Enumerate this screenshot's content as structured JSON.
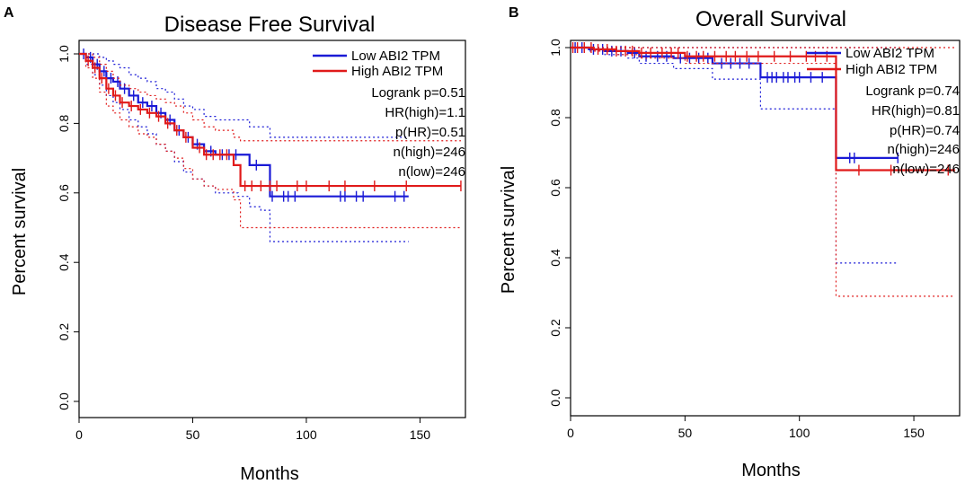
{
  "colors": {
    "low": "#1a1ad6",
    "high": "#e01a1a"
  },
  "chart_data": [
    {
      "type": "line",
      "panel_label": "A",
      "title": "Disease Free Survival",
      "xlabel": "Months",
      "ylabel": "Percent survival",
      "xlim": [
        0,
        170
      ],
      "ylim": [
        0,
        1
      ],
      "xticks": [
        "0",
        "50",
        "100",
        "150"
      ],
      "yticks": [
        "0.0",
        "0.2",
        "0.4",
        "0.6",
        "0.8",
        "1.0"
      ],
      "legend": [
        "Low ABI2 TPM",
        "High ABI2 TPM"
      ],
      "annotations": [
        "Logrank p=0.51",
        "HR(high)=1.1",
        "p(HR)=0.51",
        "n(high)=246",
        "n(low)=246"
      ],
      "series": [
        {
          "name": "Low ABI2 TPM",
          "color": "low",
          "x": [
            0,
            3,
            6,
            9,
            12,
            15,
            18,
            22,
            26,
            30,
            34,
            38,
            42,
            46,
            50,
            55,
            60,
            70,
            75,
            80,
            84,
            145
          ],
          "y": [
            1.0,
            0.99,
            0.97,
            0.95,
            0.93,
            0.92,
            0.9,
            0.88,
            0.86,
            0.85,
            0.83,
            0.81,
            0.78,
            0.76,
            0.74,
            0.72,
            0.71,
            0.71,
            0.68,
            0.68,
            0.59,
            0.59
          ],
          "lower": [
            1.0,
            0.97,
            0.94,
            0.91,
            0.88,
            0.86,
            0.84,
            0.81,
            0.79,
            0.77,
            0.74,
            0.72,
            0.69,
            0.66,
            0.64,
            0.62,
            0.6,
            0.59,
            0.56,
            0.55,
            0.46,
            0.46
          ],
          "upper": [
            1.0,
            1.0,
            1.0,
            0.99,
            0.98,
            0.97,
            0.96,
            0.94,
            0.93,
            0.92,
            0.9,
            0.89,
            0.87,
            0.85,
            0.84,
            0.82,
            0.81,
            0.81,
            0.79,
            0.79,
            0.76,
            0.76
          ],
          "censors": [
            2,
            5,
            8,
            11,
            14,
            17,
            20,
            24,
            28,
            32,
            36,
            40,
            44,
            48,
            52,
            58,
            63,
            66,
            69,
            78,
            85,
            90,
            92,
            95,
            115,
            117,
            122,
            125,
            139,
            143
          ]
        },
        {
          "name": "High ABI2 TPM",
          "color": "high",
          "x": [
            0,
            3,
            6,
            9,
            12,
            15,
            18,
            22,
            26,
            30,
            34,
            38,
            42,
            46,
            50,
            55,
            60,
            68,
            71,
            168
          ],
          "y": [
            1.0,
            0.98,
            0.96,
            0.93,
            0.9,
            0.88,
            0.86,
            0.85,
            0.84,
            0.83,
            0.82,
            0.8,
            0.78,
            0.76,
            0.73,
            0.71,
            0.71,
            0.68,
            0.62,
            0.62
          ],
          "lower": [
            1.0,
            0.96,
            0.93,
            0.89,
            0.85,
            0.83,
            0.81,
            0.79,
            0.77,
            0.76,
            0.74,
            0.72,
            0.7,
            0.67,
            0.64,
            0.62,
            0.61,
            0.58,
            0.5,
            0.5
          ],
          "upper": [
            1.0,
            1.0,
            0.99,
            0.97,
            0.95,
            0.93,
            0.91,
            0.9,
            0.89,
            0.88,
            0.87,
            0.86,
            0.85,
            0.83,
            0.81,
            0.79,
            0.78,
            0.76,
            0.75,
            0.75
          ],
          "censors": [
            4,
            7,
            10,
            13,
            16,
            19,
            23,
            27,
            31,
            35,
            39,
            43,
            47,
            53,
            56,
            59,
            62,
            65,
            73,
            76,
            80,
            84,
            87,
            96,
            100,
            110,
            117,
            130,
            144,
            168
          ]
        }
      ]
    },
    {
      "type": "line",
      "panel_label": "B",
      "title": "Overall Survival",
      "xlabel": "Months",
      "ylabel": "Percent survival",
      "xlim": [
        0,
        170
      ],
      "ylim": [
        0,
        1
      ],
      "xticks": [
        "0",
        "50",
        "100",
        "150"
      ],
      "yticks": [
        "0.0",
        "0.2",
        "0.4",
        "0.6",
        "0.8",
        "1.0"
      ],
      "legend": [
        "Low ABI2 TPM",
        "High ABI2 TPM"
      ],
      "annotations": [
        "Logrank p=0.74",
        "HR(high)=0.81",
        "p(HR)=0.74",
        "n(high)=246",
        "n(low)=246"
      ],
      "series": [
        {
          "name": "Low ABI2 TPM",
          "color": "low",
          "x": [
            0,
            8,
            15,
            25,
            30,
            45,
            62,
            83,
            116,
            143
          ],
          "y": [
            1.0,
            0.995,
            0.99,
            0.985,
            0.975,
            0.97,
            0.955,
            0.915,
            0.685,
            0.685
          ],
          "lower": [
            1.0,
            0.99,
            0.98,
            0.97,
            0.955,
            0.94,
            0.91,
            0.825,
            0.385,
            0.385
          ],
          "upper": [
            1.0,
            1.0,
            1.0,
            1.0,
            1.0,
            1.0,
            1.0,
            1.0,
            1.0,
            1.0
          ],
          "censors": [
            2,
            5,
            10,
            14,
            18,
            22,
            28,
            33,
            38,
            42,
            48,
            52,
            56,
            60,
            66,
            70,
            74,
            78,
            86,
            88,
            90,
            93,
            95,
            98,
            100,
            105,
            110,
            122,
            124,
            143
          ]
        },
        {
          "name": "High ABI2 TPM",
          "color": "high",
          "x": [
            0,
            10,
            20,
            30,
            50,
            116,
            168
          ],
          "y": [
            1.0,
            0.995,
            0.99,
            0.985,
            0.975,
            0.65,
            0.65
          ],
          "lower": [
            1.0,
            0.99,
            0.98,
            0.97,
            0.955,
            0.29,
            0.29
          ],
          "upper": [
            1.0,
            1.0,
            1.0,
            1.0,
            1.0,
            1.0,
            1.0
          ],
          "censors": [
            1,
            3,
            6,
            9,
            12,
            16,
            20,
            24,
            27,
            31,
            35,
            40,
            44,
            47,
            51,
            55,
            58,
            63,
            68,
            72,
            77,
            82,
            89,
            96,
            103,
            107,
            112,
            126,
            140,
            165
          ]
        }
      ]
    }
  ]
}
